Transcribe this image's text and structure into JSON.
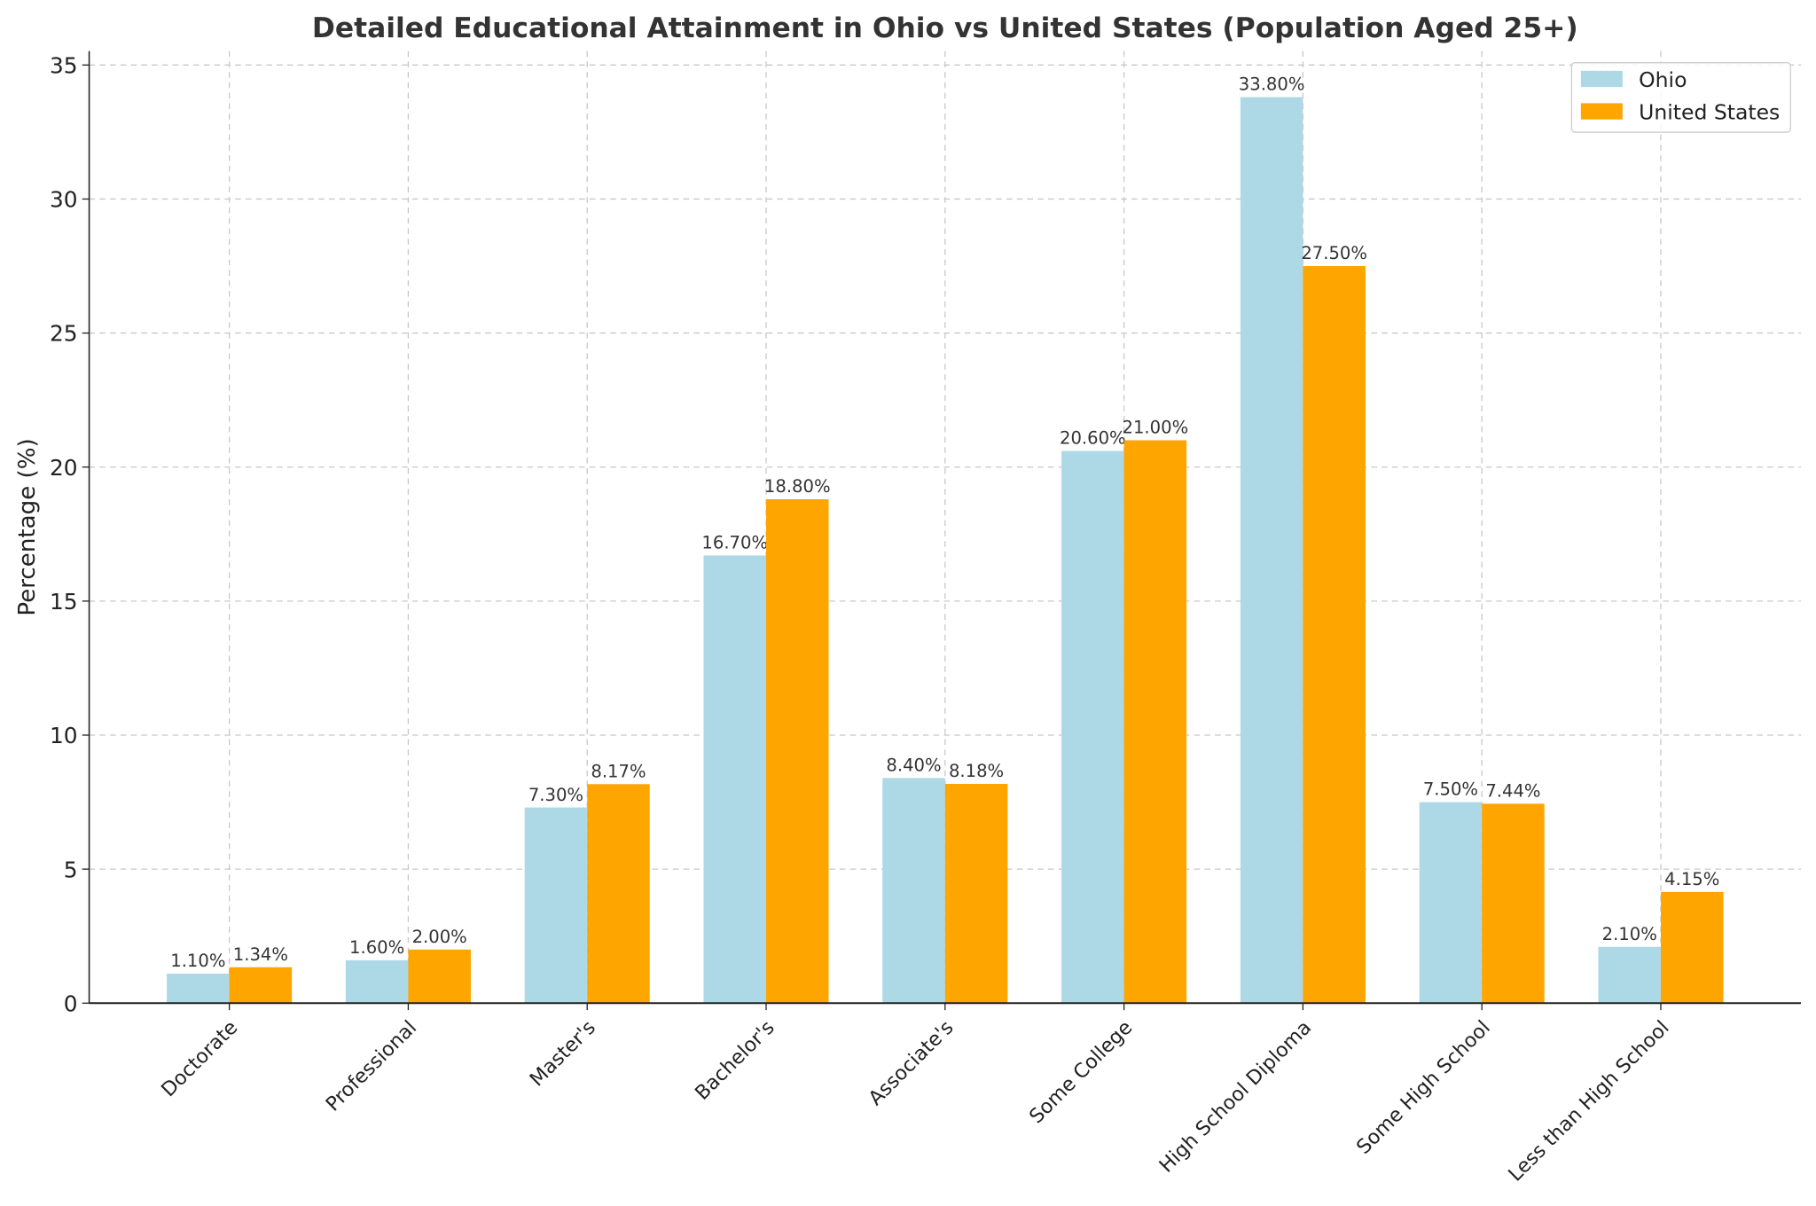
{
  "chart_data": {
    "type": "bar",
    "title": "Detailed Educational Attainment in Ohio vs United States (Population Aged 25+)",
    "xlabel": "",
    "ylabel": "Percentage (%)",
    "ylim": [
      0,
      35.5
    ],
    "yticks": [
      0,
      5,
      10,
      15,
      20,
      25,
      30,
      35
    ],
    "grid": true,
    "legend_position": "top-right",
    "categories": [
      "Doctorate",
      "Professional",
      "Master's",
      "Bachelor's",
      "Associate's",
      "Some College",
      "High School Diploma",
      "Some High School",
      "Less than High School"
    ],
    "series": [
      {
        "name": "Ohio",
        "color": "#add8e6",
        "values": [
          1.1,
          1.6,
          7.3,
          16.7,
          8.4,
          20.6,
          33.8,
          7.5,
          2.1
        ],
        "labels": [
          "1.10%",
          "1.60%",
          "7.30%",
          "16.70%",
          "8.40%",
          "20.60%",
          "33.80%",
          "7.50%",
          "2.10%"
        ]
      },
      {
        "name": "United States",
        "color": "#ffa500",
        "values": [
          1.34,
          2.0,
          8.17,
          18.8,
          8.18,
          21.0,
          27.5,
          7.44,
          4.15
        ],
        "labels": [
          "1.34%",
          "2.00%",
          "8.17%",
          "18.80%",
          "8.18%",
          "21.00%",
          "27.50%",
          "7.44%",
          "4.15%"
        ]
      }
    ]
  }
}
